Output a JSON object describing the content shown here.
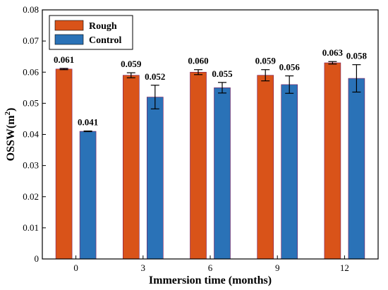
{
  "chart_data": {
    "type": "bar",
    "categories": [
      "0",
      "3",
      "6",
      "9",
      "12"
    ],
    "series": [
      {
        "name": "Rough",
        "values": [
          0.061,
          0.059,
          0.06,
          0.059,
          0.063
        ],
        "errors": [
          0.0002,
          0.0008,
          0.0008,
          0.0018,
          0.0004
        ],
        "labels": [
          "0.061",
          "0.059",
          "0.060",
          "0.059",
          "0.063"
        ],
        "color": "#D95319"
      },
      {
        "name": "Control",
        "values": [
          0.041,
          0.052,
          0.055,
          0.056,
          0.058
        ],
        "errors": [
          0.0001,
          0.0038,
          0.0017,
          0.0028,
          0.0044
        ],
        "labels": [
          "0.041",
          "0.052",
          "0.055",
          "0.056",
          "0.058"
        ],
        "color": "#2A72B7"
      }
    ],
    "xlabel": "Immersion time (months)",
    "ylabel_main": "OSSW(m",
    "ylabel_sup": "2",
    "ylabel_close": ")",
    "ylim": [
      0,
      0.08
    ],
    "yticks": [
      0,
      0.01,
      0.02,
      0.03,
      0.04,
      0.05,
      0.06,
      0.07,
      0.08
    ],
    "ytick_labels": [
      "0",
      "0.01",
      "0.02",
      "0.03",
      "0.04",
      "0.05",
      "0.06",
      "0.07",
      "0.08"
    ],
    "legend_position": "top-left",
    "grid": false
  }
}
